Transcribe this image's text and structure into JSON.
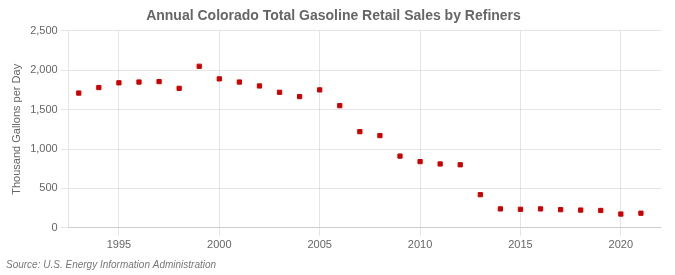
{
  "chart_data": {
    "type": "scatter",
    "title": "Annual Colorado Total Gasoline Retail Sales by Refiners",
    "ylabel": "Thousand Gallons per Day",
    "annotations": [
      "Source: U.S. Energy Information Administration"
    ],
    "x": [
      1993,
      1994,
      1995,
      1996,
      1997,
      1998,
      1999,
      2000,
      2001,
      2002,
      2003,
      2004,
      2005,
      2006,
      2007,
      2008,
      2009,
      2010,
      2011,
      2012,
      2013,
      2014,
      2015,
      2016,
      2017,
      2018,
      2019,
      2020,
      2021
    ],
    "values": [
      1710,
      1780,
      1840,
      1850,
      1855,
      1770,
      2050,
      1890,
      1850,
      1800,
      1720,
      1665,
      1750,
      1550,
      1220,
      1170,
      910,
      840,
      810,
      800,
      420,
      240,
      235,
      240,
      230,
      225,
      220,
      175,
      185
    ],
    "color": "#cc0000",
    "marker": "square",
    "xlim": [
      1992.5,
      2022
    ],
    "xticks": [
      1995,
      2000,
      2005,
      2010,
      2015,
      2020
    ],
    "ylim": [
      0,
      2500
    ],
    "yticks": [
      0,
      500,
      {
        "value": 1000,
        "label": "1,000"
      },
      {
        "value": 1500,
        "label": "1,500"
      },
      {
        "value": 2000,
        "label": "2,000"
      },
      {
        "value": 2500,
        "label": "2,500"
      }
    ],
    "grid": true
  }
}
